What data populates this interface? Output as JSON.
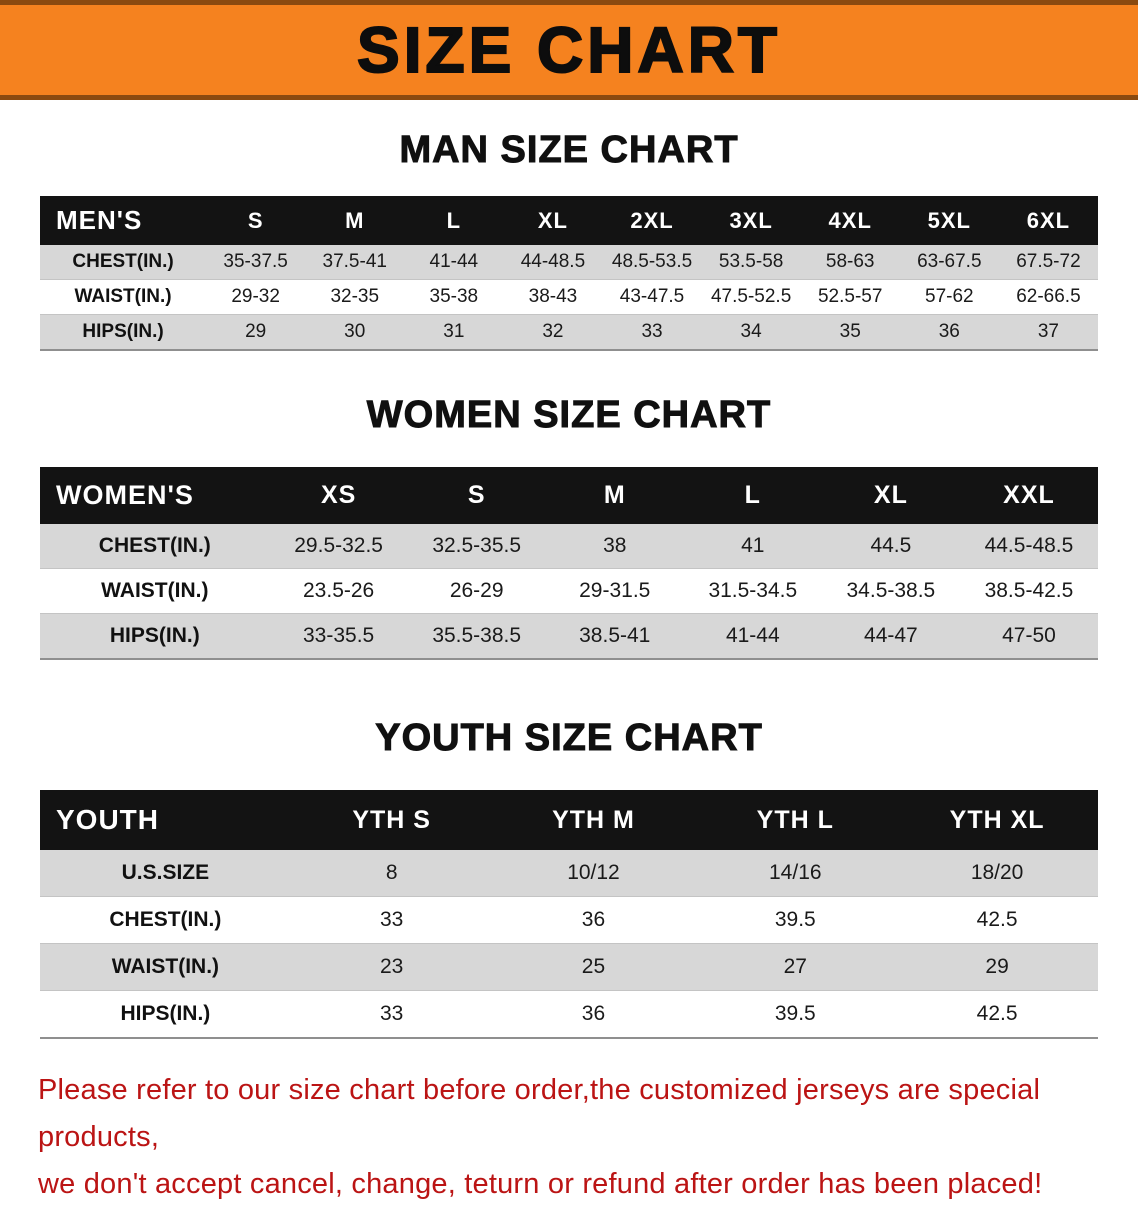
{
  "banner": {
    "title": "SIZE CHART"
  },
  "colors": {
    "banner_bg": "#f5821f",
    "banner_edge": "#8a4a10",
    "table_header_bg": "#131313",
    "row_shade": "#d7d7d7",
    "note_red": "#bb1414"
  },
  "chart_data": [
    {
      "type": "table",
      "title": "MAN SIZE CHART",
      "corner_label": "MEN'S",
      "columns": [
        "S",
        "M",
        "L",
        "XL",
        "2XL",
        "3XL",
        "4XL",
        "5XL",
        "6XL"
      ],
      "rows": [
        {
          "label": "CHEST(IN.)",
          "values": [
            "35-37.5",
            "37.5-41",
            "41-44",
            "44-48.5",
            "48.5-53.5",
            "53.5-58",
            "58-63",
            "63-67.5",
            "67.5-72"
          ]
        },
        {
          "label": "WAIST(IN.)",
          "values": [
            "29-32",
            "32-35",
            "35-38",
            "38-43",
            "43-47.5",
            "47.5-52.5",
            "52.5-57",
            "57-62",
            "62-66.5"
          ]
        },
        {
          "label": "HIPS(IN.)",
          "values": [
            "29",
            "30",
            "31",
            "32",
            "33",
            "34",
            "35",
            "36",
            "37"
          ]
        }
      ]
    },
    {
      "type": "table",
      "title": "WOMEN SIZE CHART",
      "corner_label": "WOMEN'S",
      "columns": [
        "XS",
        "S",
        "M",
        "L",
        "XL",
        "XXL"
      ],
      "rows": [
        {
          "label": "CHEST(IN.)",
          "values": [
            "29.5-32.5",
            "32.5-35.5",
            "38",
            "41",
            "44.5",
            "44.5-48.5"
          ]
        },
        {
          "label": "WAIST(IN.)",
          "values": [
            "23.5-26",
            "26-29",
            "29-31.5",
            "31.5-34.5",
            "34.5-38.5",
            "38.5-42.5"
          ]
        },
        {
          "label": "HIPS(IN.)",
          "values": [
            "33-35.5",
            "35.5-38.5",
            "38.5-41",
            "41-44",
            "44-47",
            "47-50"
          ]
        }
      ]
    },
    {
      "type": "table",
      "title": "YOUTH SIZE CHART",
      "corner_label": "YOUTH",
      "columns": [
        "YTH S",
        "YTH M",
        "YTH L",
        "YTH XL"
      ],
      "rows": [
        {
          "label": "U.S.SIZE",
          "values": [
            "8",
            "10/12",
            "14/16",
            "18/20"
          ]
        },
        {
          "label": "CHEST(IN.)",
          "values": [
            "33",
            "36",
            "39.5",
            "42.5"
          ]
        },
        {
          "label": "WAIST(IN.)",
          "values": [
            "23",
            "25",
            "27",
            "29"
          ]
        },
        {
          "label": "HIPS(IN.)",
          "values": [
            "33",
            "36",
            "39.5",
            "42.5"
          ]
        }
      ]
    }
  ],
  "footer_note": {
    "line1": "Please refer to our size chart before order,the customized jerseys are special products,",
    "line2": "we don't accept cancel, change, teturn or refund after order has been placed!"
  }
}
